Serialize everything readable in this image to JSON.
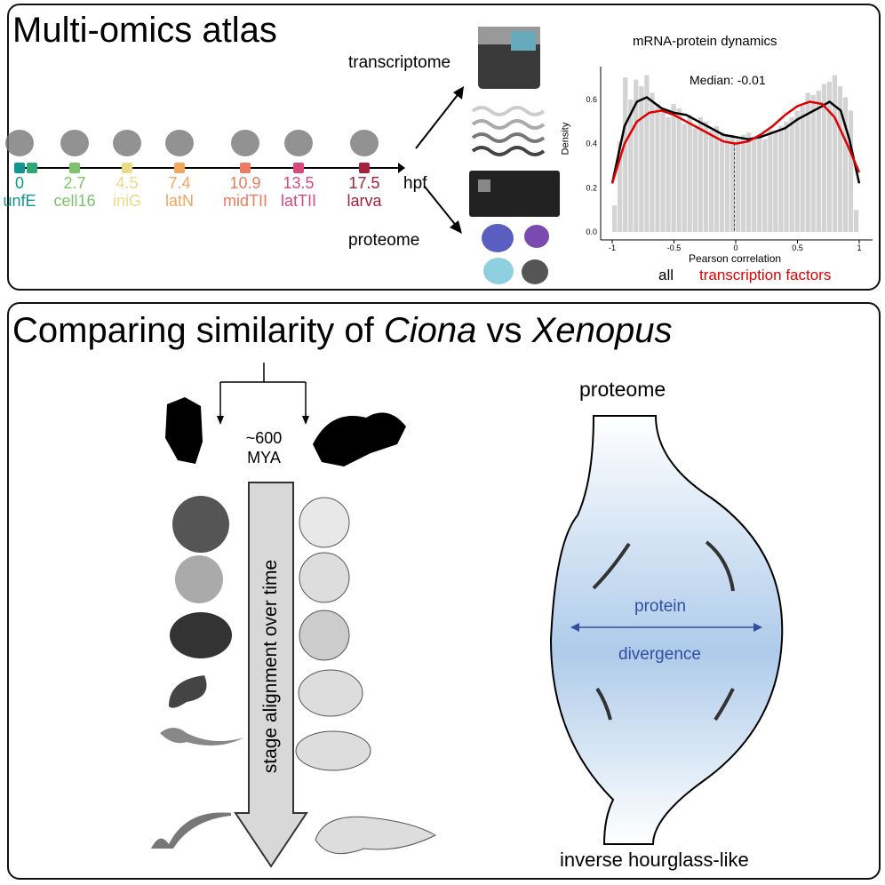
{
  "top": {
    "title": "Multi-omics atlas",
    "timeline": {
      "unit": "hpf",
      "stages": [
        {
          "time": "0",
          "name": "unfE",
          "color": "#12958f"
        },
        {
          "time": "",
          "name": "",
          "color": "#2ea877"
        },
        {
          "time": "2.7",
          "name": "cell16",
          "color": "#7dc36b"
        },
        {
          "time": "4.5",
          "name": "iniG",
          "color": "#e9dc84"
        },
        {
          "time": "7.4",
          "name": "latN",
          "color": "#f2a75f"
        },
        {
          "time": "10.9",
          "name": "midTII",
          "color": "#ee7a60"
        },
        {
          "time": "13.5",
          "name": "latTII",
          "color": "#d9497a"
        },
        {
          "time": "17.5",
          "name": "larva",
          "color": "#a3213a"
        }
      ]
    },
    "transcriptome_label": "transcriptome",
    "proteome_label": "proteome"
  },
  "chart_data": {
    "type": "bar",
    "title": "mRNA-protein dynamics",
    "xlabel": "Pearson correlation",
    "ylabel": "Density",
    "xlim": [
      -1,
      1
    ],
    "ylim": [
      0,
      0.7
    ],
    "xticks": [
      "-1",
      "-0.5",
      "0",
      "0.5",
      "1"
    ],
    "yticks": [
      "0.0",
      "0.2",
      "0.4",
      "0.6"
    ],
    "annotation": "Median: -0.01",
    "median": -0.01,
    "histogram": [
      0.12,
      0.41,
      0.7,
      0.6,
      0.69,
      0.66,
      0.71,
      0.63,
      0.58,
      0.56,
      0.52,
      0.58,
      0.56,
      0.49,
      0.53,
      0.47,
      0.52,
      0.5,
      0.46,
      0.48,
      0.45,
      0.44,
      0.44,
      0.42,
      0.44,
      0.45,
      0.43,
      0.44,
      0.42,
      0.46,
      0.46,
      0.48,
      0.5,
      0.52,
      0.55,
      0.57,
      0.63,
      0.62,
      0.64,
      0.67,
      0.68,
      0.71,
      0.66,
      0.61,
      0.55,
      0.1
    ],
    "series": [
      {
        "name": "all",
        "color": "#000000",
        "x": [
          -1,
          -0.9,
          -0.8,
          -0.72,
          -0.6,
          -0.5,
          -0.4,
          -0.3,
          -0.2,
          -0.1,
          0,
          0.1,
          0.2,
          0.3,
          0.4,
          0.5,
          0.6,
          0.7,
          0.76,
          0.85,
          0.92,
          1
        ],
        "y": [
          0.22,
          0.48,
          0.59,
          0.61,
          0.56,
          0.54,
          0.53,
          0.5,
          0.47,
          0.44,
          0.43,
          0.42,
          0.43,
          0.45,
          0.47,
          0.51,
          0.54,
          0.57,
          0.59,
          0.55,
          0.42,
          0.22
        ]
      },
      {
        "name": "transcription factors",
        "color": "#e10000",
        "x": [
          -1,
          -0.9,
          -0.8,
          -0.7,
          -0.6,
          -0.5,
          -0.4,
          -0.3,
          -0.2,
          -0.1,
          0,
          0.1,
          0.2,
          0.3,
          0.4,
          0.5,
          0.6,
          0.7,
          0.8,
          0.9,
          1
        ],
        "y": [
          0.22,
          0.4,
          0.5,
          0.54,
          0.55,
          0.53,
          0.5,
          0.47,
          0.44,
          0.41,
          0.4,
          0.41,
          0.44,
          0.48,
          0.53,
          0.57,
          0.59,
          0.58,
          0.52,
          0.4,
          0.27
        ]
      }
    ]
  },
  "bottom": {
    "title_prefix": "Comparing similarity of ",
    "species1": "Ciona",
    "title_vs": " vs ",
    "species2": "Xenopus",
    "divergence_time": "~600",
    "divergence_unit": "MYA",
    "arrow_label": "stage alignment over time",
    "proteome_label": "proteome",
    "protein_label": "protein",
    "divergence_label": "divergence",
    "shape_label": "inverse hourglass-like",
    "accent_color": "#2f4fa0"
  }
}
